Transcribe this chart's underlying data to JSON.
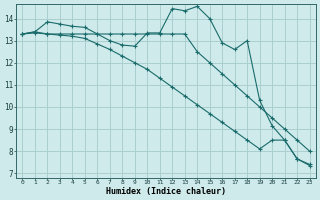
{
  "xlabel": "Humidex (Indice chaleur)",
  "background_color": "#ceeaea",
  "grid_color": "#aacece",
  "line_color": "#1a6b6b",
  "xlim": [
    -0.5,
    23.5
  ],
  "ylim": [
    6.8,
    14.65
  ],
  "xticks": [
    0,
    1,
    2,
    3,
    4,
    5,
    6,
    7,
    8,
    9,
    10,
    11,
    12,
    13,
    14,
    15,
    16,
    17,
    18,
    19,
    20,
    21,
    22,
    23
  ],
  "yticks": [
    7,
    8,
    9,
    10,
    11,
    12,
    13,
    14
  ],
  "lines": [
    {
      "x": [
        0,
        1,
        2,
        3,
        4,
        5,
        6,
        7,
        8,
        9,
        10,
        11,
        12,
        13,
        14,
        15,
        16,
        17,
        18,
        19,
        20,
        21,
        22,
        23
      ],
      "y": [
        13.3,
        13.4,
        13.85,
        13.75,
        13.65,
        13.6,
        13.3,
        13.0,
        12.8,
        12.75,
        13.35,
        13.35,
        14.45,
        14.35,
        14.55,
        14.0,
        12.9,
        12.6,
        13.0,
        10.3,
        9.15,
        8.5,
        7.65,
        7.4
      ]
    },
    {
      "x": [
        0,
        1,
        2,
        3,
        4,
        5,
        6,
        7,
        8,
        9,
        10,
        11,
        12,
        13,
        14,
        15,
        16,
        17,
        18,
        19,
        20,
        21,
        22,
        23
      ],
      "y": [
        13.3,
        13.4,
        13.3,
        13.3,
        13.3,
        13.3,
        13.3,
        13.3,
        13.3,
        13.3,
        13.3,
        13.3,
        13.3,
        13.3,
        12.5,
        12.0,
        11.5,
        11.0,
        10.5,
        10.0,
        9.5,
        9.0,
        8.5,
        8.0
      ]
    },
    {
      "x": [
        0,
        1,
        2,
        3,
        4,
        5,
        6,
        7,
        8,
        9,
        10,
        11,
        12,
        13,
        14,
        15,
        16,
        17,
        18,
        19,
        20,
        21,
        22,
        23
      ],
      "y": [
        13.3,
        13.35,
        13.3,
        13.25,
        13.2,
        13.1,
        12.85,
        12.6,
        12.3,
        12.0,
        11.7,
        11.3,
        10.9,
        10.5,
        10.1,
        9.7,
        9.3,
        8.9,
        8.5,
        8.1,
        8.5,
        8.5,
        7.65,
        7.35
      ]
    }
  ]
}
